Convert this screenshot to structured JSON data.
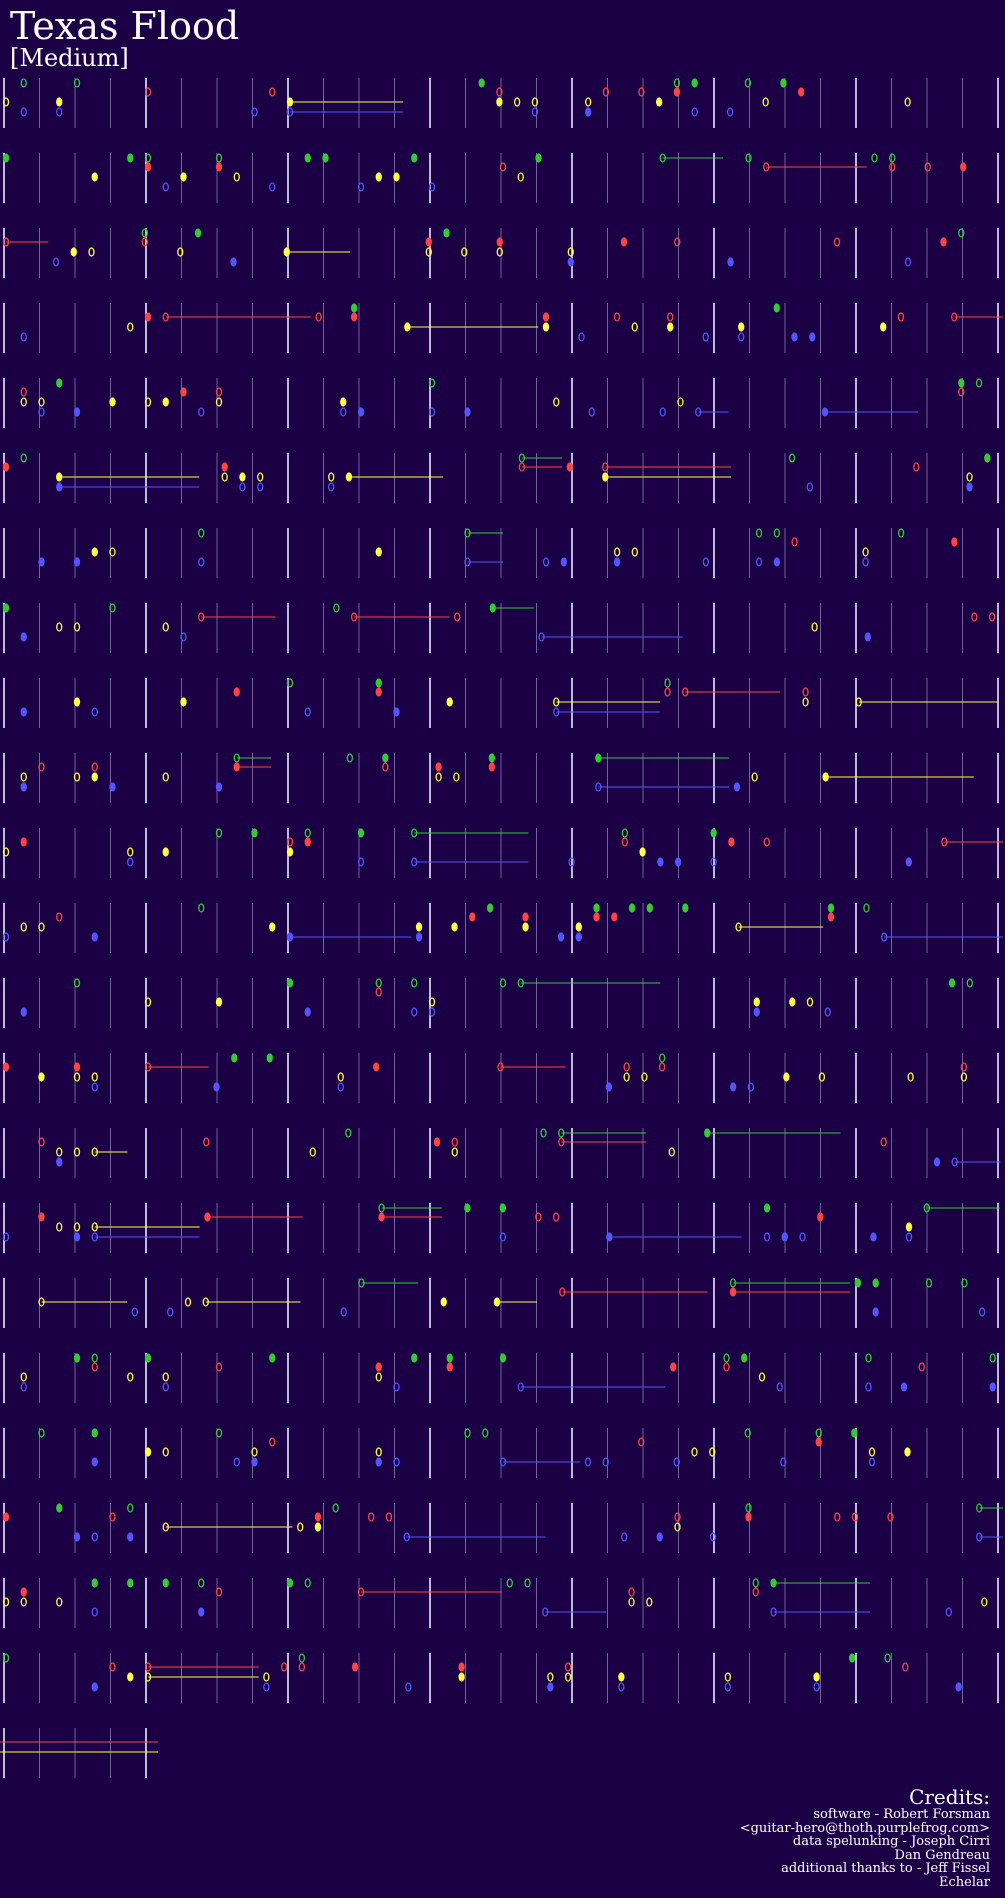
{
  "header": {
    "title": "Texas Flood",
    "difficulty": "[Medium]"
  },
  "credits": {
    "heading": "Credits:",
    "lines": [
      "software - Robert Forsman",
      "<guitar-hero@thoth.purplefrog.com>",
      "data spelunking - Joseph Cirri",
      "Dan Gendreau",
      "additional thanks to - Jeff Fissel",
      "Echelar"
    ]
  }
}
